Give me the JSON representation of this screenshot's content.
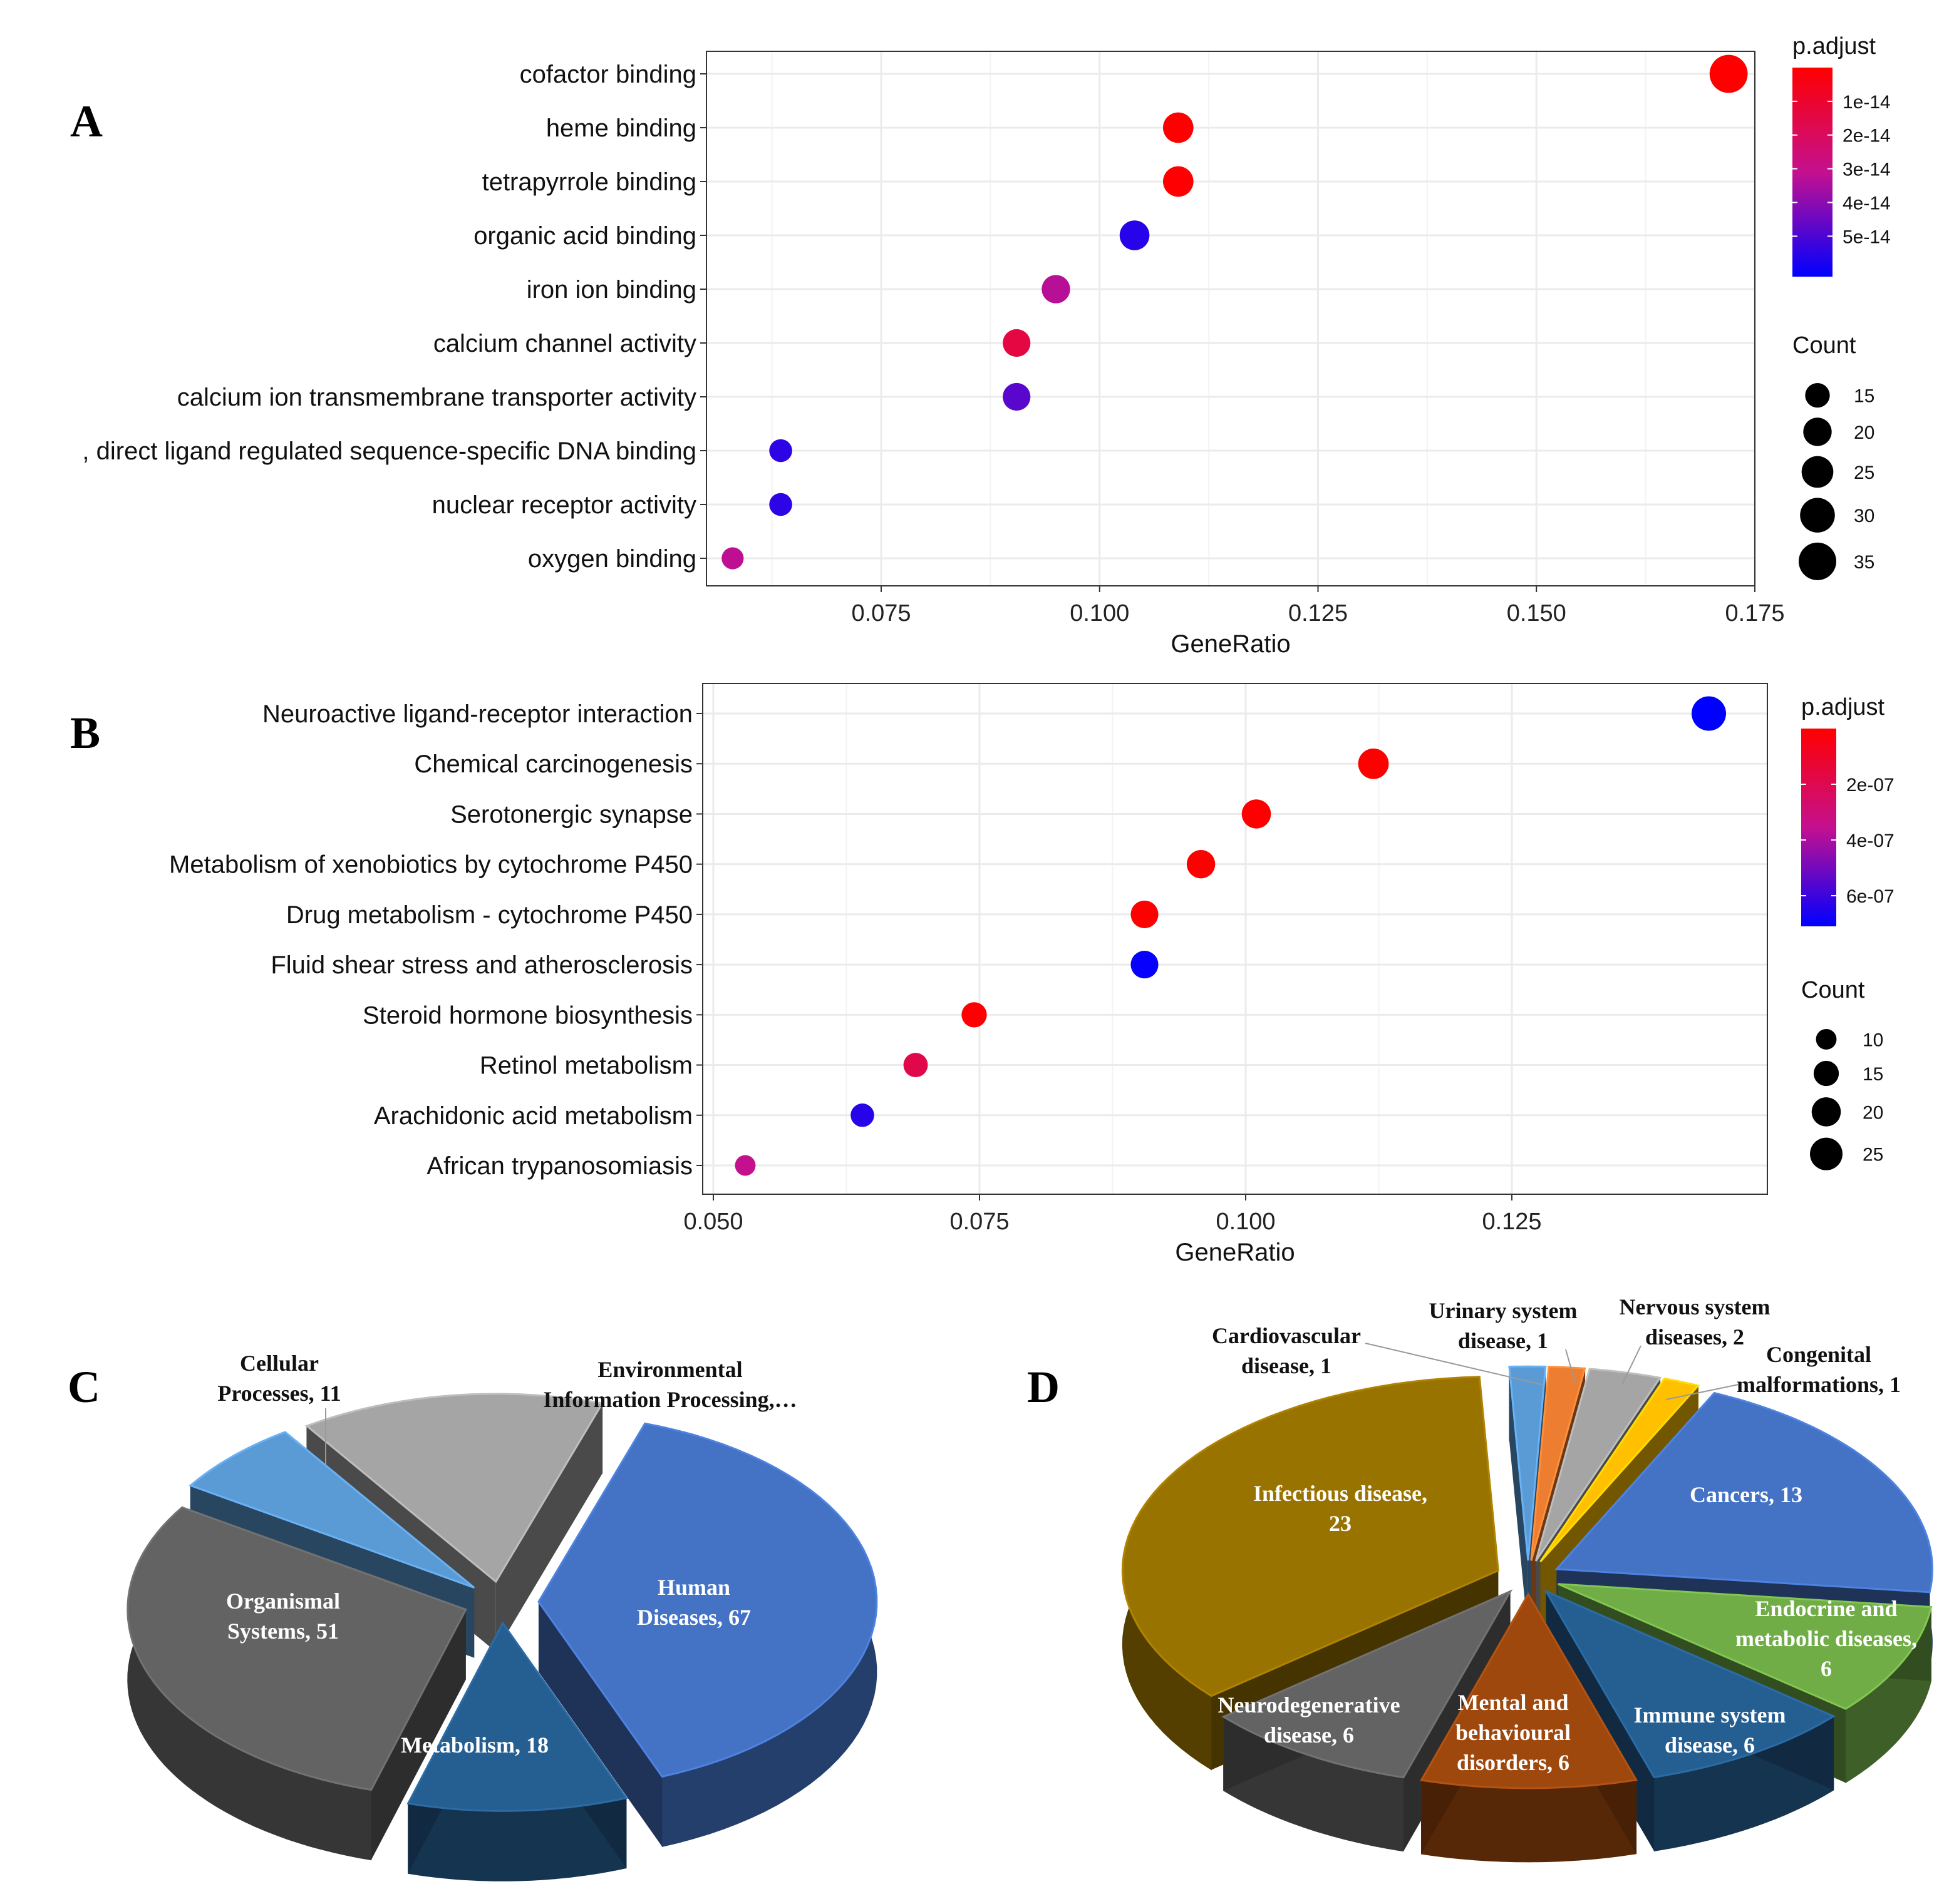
{
  "colors": {
    "low": "#ff0000",
    "mid": "#c4108f",
    "high": "#0000ff",
    "grid": "#ebebeb",
    "frame": "#333333"
  },
  "chart_data": [
    {
      "panel": "A",
      "type": "scatter",
      "kind": "dotplot",
      "xlabel": "GeneRatio",
      "xlim": [
        0.055,
        0.175
      ],
      "xticks": [
        0.075,
        0.1,
        0.125,
        0.15,
        0.175
      ],
      "xtick_labels": [
        "0.075",
        "0.100",
        "0.125",
        "0.150",
        "0.175"
      ],
      "terms": [
        {
          "label": "cofactor binding",
          "x": 0.172,
          "count": 36,
          "p": 1e-16
        },
        {
          "label": "heme binding",
          "x": 0.109,
          "count": 23,
          "p": 2e-16
        },
        {
          "label": "tetrapyrrole binding",
          "x": 0.109,
          "count": 23,
          "p": 3e-16
        },
        {
          "label": "organic acid binding",
          "x": 0.104,
          "count": 22,
          "p": 5.6e-14
        },
        {
          "label": "iron ion binding",
          "x": 0.095,
          "count": 20,
          "p": 3.3e-14
        },
        {
          "label": "calcium channel activity",
          "x": 0.0905,
          "count": 19,
          "p": 1.4e-14
        },
        {
          "label": "calcium ion transmembrane transporter activity",
          "x": 0.0905,
          "count": 19,
          "p": 4.8e-14
        },
        {
          "label": ", direct ligand regulated sequence-specific DNA binding",
          "x": 0.0635,
          "count": 13,
          "p": 5.5e-14
        },
        {
          "label": "nuclear receptor activity",
          "x": 0.0635,
          "count": 13,
          "p": 5.5e-14
        },
        {
          "label": "oxygen binding",
          "x": 0.058,
          "count": 12,
          "p": 3.2e-14
        }
      ],
      "legend_color": {
        "title": "p.adjust",
        "min": 0,
        "max": 6.2e-14,
        "ticks": [
          1e-14,
          2e-14,
          3e-14,
          4e-14,
          5e-14
        ],
        "tick_labels": [
          "1e-14",
          "2e-14",
          "3e-14",
          "4e-14",
          "5e-14"
        ]
      },
      "legend_size": {
        "title": "Count",
        "values": [
          15,
          20,
          25,
          30,
          35
        ],
        "labels": [
          "15",
          "20",
          "25",
          "30",
          "35"
        ]
      }
    },
    {
      "panel": "B",
      "type": "scatter",
      "kind": "dotplot",
      "xlabel": "GeneRatio",
      "xlim": [
        0.049,
        0.149
      ],
      "xticks": [
        0.05,
        0.075,
        0.1,
        0.125
      ],
      "xtick_labels": [
        "0.050",
        "0.075",
        "0.100",
        "0.125"
      ],
      "terms": [
        {
          "label": "Neuroactive ligand-receptor interaction",
          "x": 0.1435,
          "count": 28,
          "p": 7.1e-07
        },
        {
          "label": "Chemical carcinogenesis",
          "x": 0.112,
          "count": 22,
          "p": 1e-09
        },
        {
          "label": "Serotonergic synapse",
          "x": 0.101,
          "count": 20,
          "p": 1e-09
        },
        {
          "label": "Metabolism of xenobiotics by cytochrome P450",
          "x": 0.0958,
          "count": 19,
          "p": 2e-09
        },
        {
          "label": "Drug metabolism - cytochrome P450",
          "x": 0.0905,
          "count": 18,
          "p": 3e-09
        },
        {
          "label": "Fluid shear stress and atherosclerosis",
          "x": 0.0905,
          "count": 18,
          "p": 7e-07
        },
        {
          "label": "Steroid hormone biosynthesis",
          "x": 0.0745,
          "count": 15,
          "p": 5e-09
        },
        {
          "label": "Retinol metabolism",
          "x": 0.069,
          "count": 14,
          "p": 1.8e-07
        },
        {
          "label": "Arachidonic acid metabolism",
          "x": 0.064,
          "count": 13,
          "p": 6.4e-07
        },
        {
          "label": "African trypanosomiasis",
          "x": 0.053,
          "count": 10,
          "p": 3.5e-07
        }
      ],
      "legend_color": {
        "title": "p.adjust",
        "min": 0,
        "max": 7.1e-07,
        "ticks": [
          2e-07,
          4e-07,
          6e-07
        ],
        "tick_labels": [
          "2e-07",
          "4e-07",
          "6e-07"
        ]
      },
      "legend_size": {
        "title": "Count",
        "values": [
          10,
          15,
          20,
          25
        ],
        "labels": [
          "10",
          "15",
          "20",
          "25"
        ]
      }
    },
    {
      "panel": "C",
      "type": "pie",
      "style": "3d-exploded",
      "slices": [
        {
          "label": "Human Diseases, 67",
          "value": 67,
          "color": "#4472c4"
        },
        {
          "label": "Metabolism, 18",
          "value": 18,
          "color": "#255e91"
        },
        {
          "label": "Organismal Systems, 51",
          "value": 51,
          "color": "#636363"
        },
        {
          "label": "Cellular Processes, 11",
          "value": 11,
          "color": "#5b9bd5"
        },
        {
          "label": "Environmental Information Processing,…",
          "value": 25,
          "color": "#a5a5a5"
        }
      ]
    },
    {
      "panel": "D",
      "type": "pie",
      "style": "3d-exploded",
      "slices": [
        {
          "label": "Cardiovascular disease, 1",
          "value": 1,
          "color": "#5b9bd5"
        },
        {
          "label": "Urinary system disease, 1",
          "value": 1,
          "color": "#ed7d31"
        },
        {
          "label": "Nervous system diseases, 2",
          "value": 2,
          "color": "#a5a5a5"
        },
        {
          "label": "Congenital malformations, 1",
          "value": 1,
          "color": "#ffc000"
        },
        {
          "label": "Cancers, 13",
          "value": 13,
          "color": "#4472c4"
        },
        {
          "label": "Endocrine and metabolic diseases, 6",
          "value": 6,
          "color": "#70ad47"
        },
        {
          "label": "Immune system disease, 6",
          "value": 6,
          "color": "#255e91"
        },
        {
          "label": "Mental and behavioural disorders, 6",
          "value": 6,
          "color": "#9e480e"
        },
        {
          "label": "Neurodegenerative disease, 6",
          "value": 6,
          "color": "#636363"
        },
        {
          "label": "Infectious disease, 23",
          "value": 23,
          "color": "#997300"
        }
      ]
    }
  ]
}
